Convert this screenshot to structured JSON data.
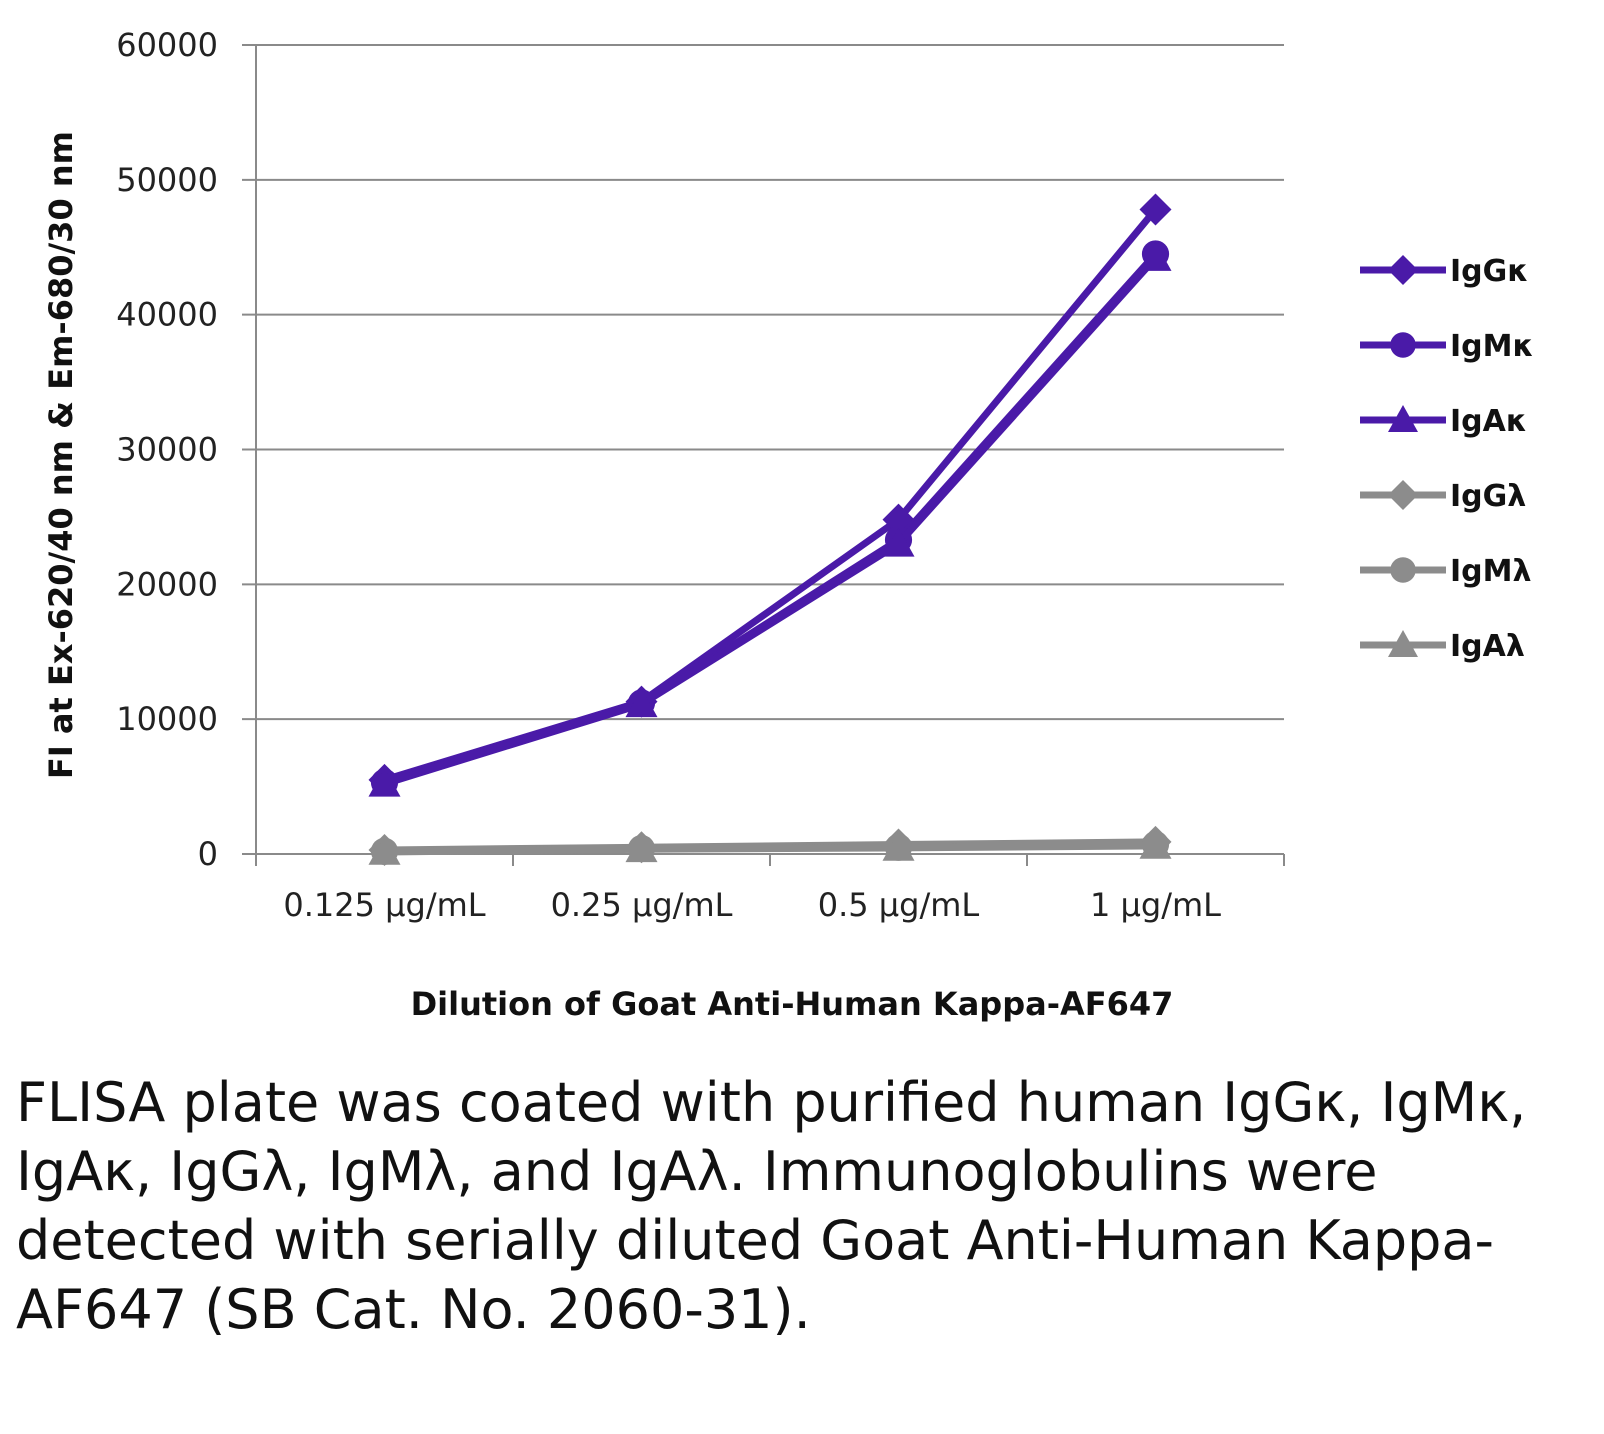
{
  "chart_data": {
    "type": "line",
    "xlabel": "Dilution of Goat Anti-Human Kappa-AF647",
    "ylabel": "FI at Ex-620/40 nm & Em-680/30 nm",
    "categories": [
      "0.125 µg/mL",
      "0.25 µg/mL",
      "0.5 µg/mL",
      "1 µg/mL"
    ],
    "ylim": [
      0,
      60000
    ],
    "yticks": [
      0,
      10000,
      20000,
      30000,
      40000,
      50000,
      60000
    ],
    "grid": true,
    "legend_position": "right",
    "series": [
      {
        "name": "IgGκ",
        "marker": "diamond",
        "color": "#4a1aa8",
        "values": [
          5500,
          11300,
          24800,
          47800
        ]
      },
      {
        "name": "IgMκ",
        "marker": "circle",
        "color": "#4a1aa8",
        "values": [
          5300,
          11200,
          23300,
          44500
        ]
      },
      {
        "name": "IgAκ",
        "marker": "triangle",
        "color": "#4a1aa8",
        "values": [
          5200,
          11100,
          23000,
          44200
        ]
      },
      {
        "name": "IgGλ",
        "marker": "diamond",
        "color": "#8c8c8c",
        "values": [
          300,
          500,
          700,
          900
        ]
      },
      {
        "name": "IgMλ",
        "marker": "circle",
        "color": "#8c8c8c",
        "values": [
          200,
          400,
          500,
          700
        ]
      },
      {
        "name": "IgAλ",
        "marker": "triangle",
        "color": "#8c8c8c",
        "values": [
          150,
          350,
          450,
          600
        ]
      }
    ]
  },
  "caption": "FLISA plate was coated with purified human IgGκ, IgMκ, IgAκ, IgGλ, IgMλ, and IgAλ. Immunoglobulins were detected with serially diluted Goat Anti-Human Kappa-AF647 (SB Cat. No. 2060-31)."
}
